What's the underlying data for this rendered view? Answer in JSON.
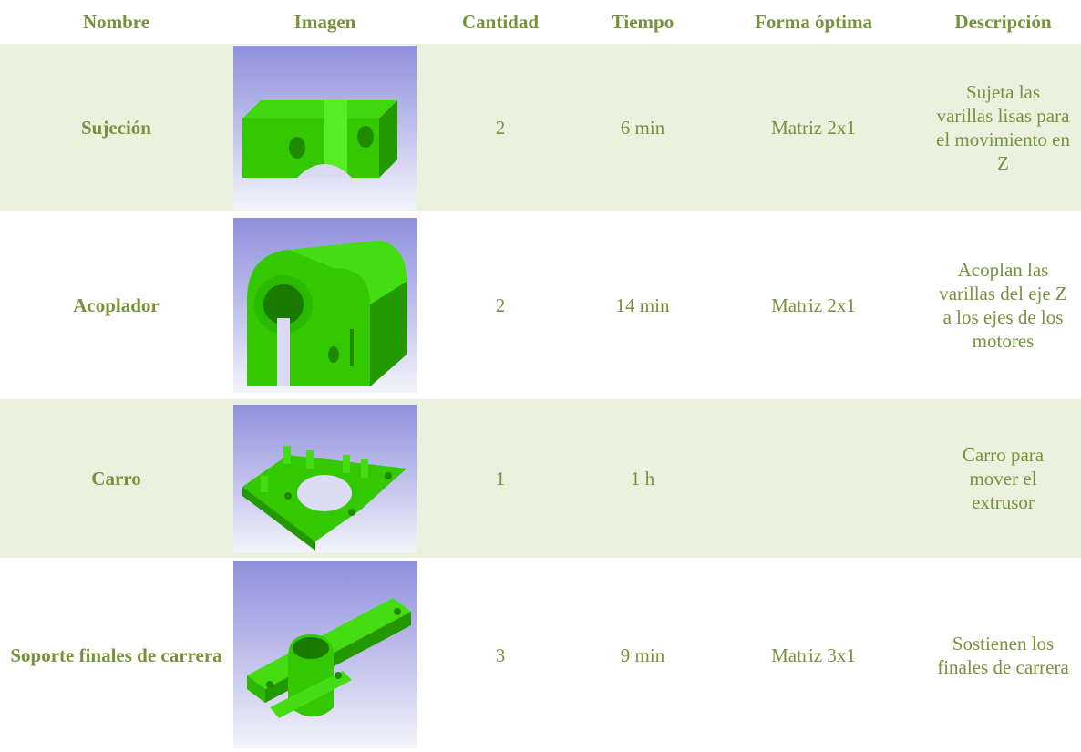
{
  "table": {
    "header": [
      "Nombre",
      "Imagen",
      "Cantidad",
      "Tiempo",
      "Forma óptima",
      "Descripción"
    ],
    "rows": [
      {
        "name": "Sujeción",
        "quantity": "2",
        "time": "6 min",
        "form": "Matriz 2x1",
        "description": "Sujeta las varillas lisas para el movimiento en Z"
      },
      {
        "name": "Acoplador",
        "quantity": "2",
        "time": "14 min",
        "form": "Matriz 2x1",
        "description": "Acoplan las varillas del eje Z a los ejes de los motores"
      },
      {
        "name": "Carro",
        "quantity": "1",
        "time": "1 h",
        "description": "Carro para mover el extrusor"
      },
      {
        "name": "Soporte finales de carrera",
        "quantity": "3",
        "time": "9 min",
        "form": "Matriz 3x1",
        "description": "Sostienen los finales de carrera"
      }
    ]
  }
}
